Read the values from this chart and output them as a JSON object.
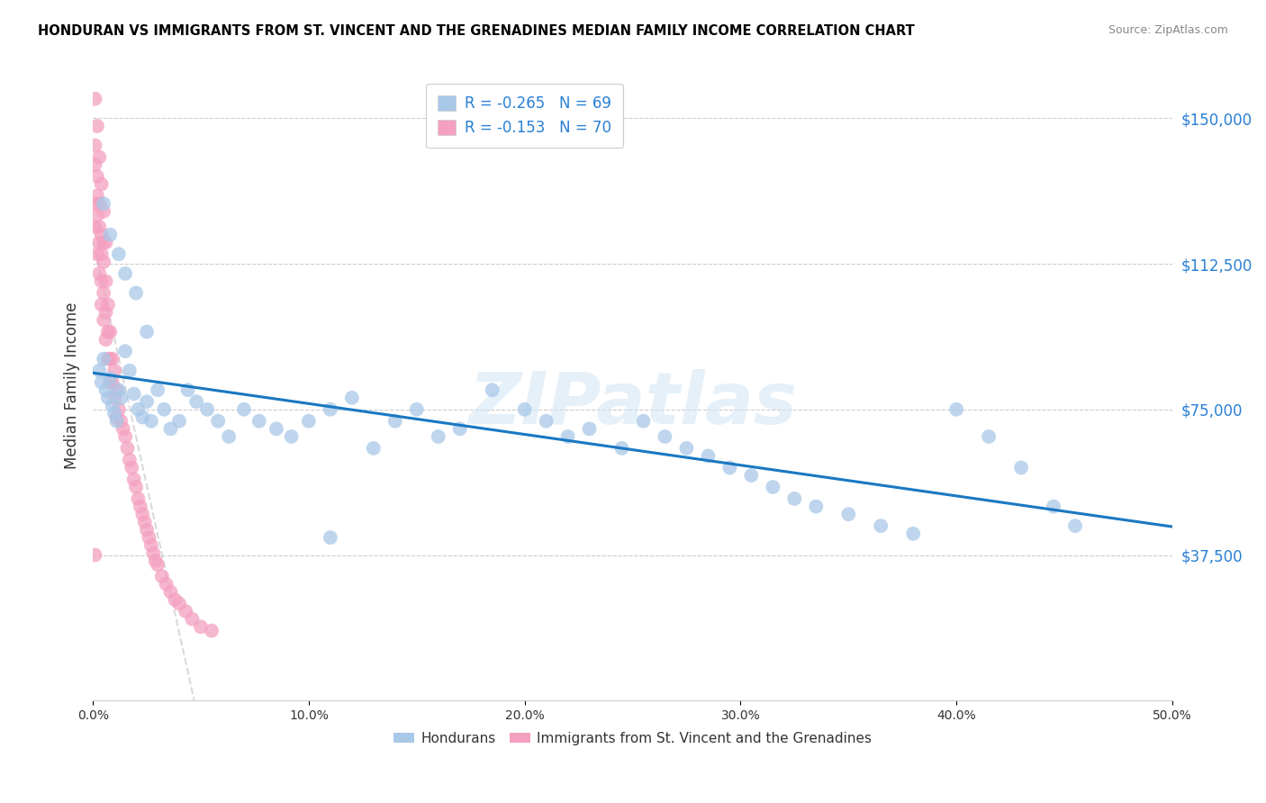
{
  "title": "HONDURAN VS IMMIGRANTS FROM ST. VINCENT AND THE GRENADINES MEDIAN FAMILY INCOME CORRELATION CHART",
  "source": "Source: ZipAtlas.com",
  "ylabel": "Median Family Income",
  "xlim": [
    0.0,
    0.5
  ],
  "ylim": [
    0,
    162500
  ],
  "yticks": [
    37500,
    75000,
    112500,
    150000
  ],
  "ytick_labels": [
    "$37,500",
    "$75,000",
    "$112,500",
    "$150,000"
  ],
  "xticks": [
    0.0,
    0.1,
    0.2,
    0.3,
    0.4,
    0.5
  ],
  "xtick_labels": [
    "0.0%",
    "10.0%",
    "20.0%",
    "30.0%",
    "40.0%",
    "50.0%"
  ],
  "honduran_color": "#a8c8e8",
  "vincent_color": "#f4a0c0",
  "trendline_honduran_color": "#1a78c2",
  "trendline_vincent_color": "#d0d0d0",
  "background_color": "#ffffff",
  "grid_color": "#cccccc",
  "ytick_color": "#2a7fd4",
  "watermark": "ZIPatlas",
  "legend_r_hon": "-0.265",
  "legend_n_hon": "69",
  "legend_r_vin": "-0.153",
  "legend_n_vin": "70",
  "hon_x": [
    0.003,
    0.004,
    0.005,
    0.006,
    0.007,
    0.008,
    0.009,
    0.01,
    0.011,
    0.012,
    0.013,
    0.015,
    0.017,
    0.019,
    0.021,
    0.023,
    0.025,
    0.027,
    0.03,
    0.033,
    0.036,
    0.04,
    0.044,
    0.048,
    0.053,
    0.058,
    0.063,
    0.07,
    0.077,
    0.085,
    0.092,
    0.1,
    0.11,
    0.12,
    0.13,
    0.14,
    0.15,
    0.16,
    0.17,
    0.185,
    0.2,
    0.21,
    0.22,
    0.23,
    0.245,
    0.255,
    0.265,
    0.275,
    0.285,
    0.295,
    0.305,
    0.315,
    0.325,
    0.335,
    0.35,
    0.365,
    0.38,
    0.4,
    0.415,
    0.43,
    0.445,
    0.455,
    0.005,
    0.008,
    0.012,
    0.015,
    0.02,
    0.025,
    0.11
  ],
  "hon_y": [
    85000,
    82000,
    88000,
    80000,
    78000,
    83000,
    76000,
    74000,
    72000,
    80000,
    78000,
    90000,
    85000,
    79000,
    75000,
    73000,
    77000,
    72000,
    80000,
    75000,
    70000,
    72000,
    80000,
    77000,
    75000,
    72000,
    68000,
    75000,
    72000,
    70000,
    68000,
    72000,
    75000,
    78000,
    65000,
    72000,
    75000,
    68000,
    70000,
    80000,
    75000,
    72000,
    68000,
    70000,
    65000,
    72000,
    68000,
    65000,
    63000,
    60000,
    58000,
    55000,
    52000,
    50000,
    48000,
    45000,
    43000,
    75000,
    68000,
    60000,
    50000,
    45000,
    128000,
    120000,
    115000,
    110000,
    105000,
    95000,
    42000
  ],
  "vin_x": [
    0.001,
    0.001,
    0.001,
    0.001,
    0.002,
    0.002,
    0.002,
    0.002,
    0.003,
    0.003,
    0.003,
    0.003,
    0.004,
    0.004,
    0.004,
    0.004,
    0.005,
    0.005,
    0.005,
    0.005,
    0.006,
    0.006,
    0.006,
    0.007,
    0.007,
    0.007,
    0.008,
    0.008,
    0.008,
    0.009,
    0.009,
    0.01,
    0.01,
    0.011,
    0.011,
    0.012,
    0.013,
    0.014,
    0.015,
    0.016,
    0.017,
    0.018,
    0.019,
    0.02,
    0.021,
    0.022,
    0.023,
    0.024,
    0.025,
    0.026,
    0.027,
    0.028,
    0.029,
    0.03,
    0.032,
    0.034,
    0.036,
    0.038,
    0.04,
    0.043,
    0.046,
    0.05,
    0.055,
    0.001,
    0.002,
    0.003,
    0.004,
    0.005,
    0.006,
    0.001
  ],
  "vin_y": [
    143000,
    138000,
    128000,
    122000,
    135000,
    130000,
    125000,
    115000,
    128000,
    122000,
    118000,
    110000,
    120000,
    115000,
    108000,
    102000,
    118000,
    113000,
    105000,
    98000,
    108000,
    100000,
    93000,
    102000,
    95000,
    88000,
    95000,
    88000,
    82000,
    88000,
    82000,
    85000,
    78000,
    80000,
    73000,
    75000,
    72000,
    70000,
    68000,
    65000,
    62000,
    60000,
    57000,
    55000,
    52000,
    50000,
    48000,
    46000,
    44000,
    42000,
    40000,
    38000,
    36000,
    35000,
    32000,
    30000,
    28000,
    26000,
    25000,
    23000,
    21000,
    19000,
    18000,
    155000,
    148000,
    140000,
    133000,
    126000,
    118000,
    37500
  ]
}
